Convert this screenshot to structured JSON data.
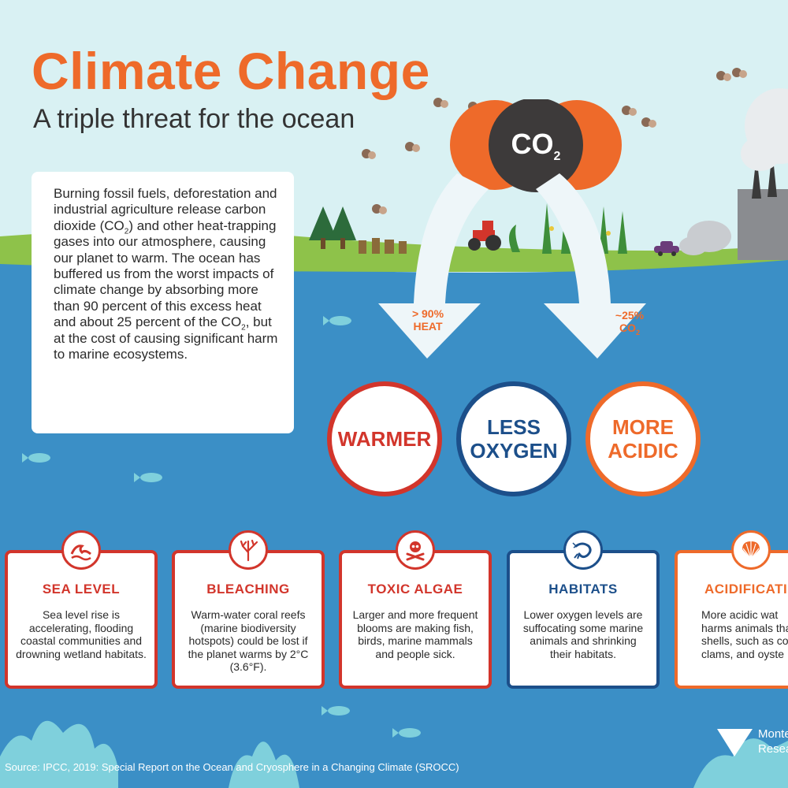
{
  "header": {
    "title": "Climate Change",
    "subtitle": "A triple threat for the ocean"
  },
  "intro": {
    "part1": "Burning fossil fuels, deforestation and industrial agriculture release carbon dioxide (CO",
    "sub1": "2",
    "part2": ") and other heat-trapping gases into our atmosphere, causing our planet to warm. The ocean has buffered us from the worst impacts of climate change by absorbing more than 90 percent of this excess heat and about 25 percent of the CO",
    "sub2": "2",
    "part3": ", but at the cost of causing significant harm to marine ecosystems."
  },
  "co2": {
    "label": "CO",
    "sub": "2"
  },
  "arrows": {
    "heat": {
      "line1": "> 90%",
      "line2": "HEAT"
    },
    "co2": {
      "line1": "~25%",
      "line2": "CO",
      "sub": "2"
    }
  },
  "threats": [
    {
      "line1": "WARMER",
      "line2": ""
    },
    {
      "line1": "LESS",
      "line2": "OXYGEN"
    },
    {
      "line1": "MORE",
      "line2": "ACIDIC"
    }
  ],
  "cards": [
    {
      "title": "SEA LEVEL",
      "desc": "Sea level rise is accelerating, flooding coastal communities and drowning wetland habitats.",
      "icon": "wave-icon"
    },
    {
      "title": "BLEACHING",
      "desc": "Warm-water coral reefs (marine biodiversity hotspots) could be lost if the planet warms by 2°C (3.6°F).",
      "icon": "coral-icon"
    },
    {
      "title": "TOXIC ALGAE",
      "desc": "Larger and more frequent blooms are making fish, birds, marine mammals and people sick.",
      "icon": "skull-crossbones-icon"
    },
    {
      "title": "HABITATS",
      "desc": "Lower oxygen levels are suffocating some marine animals and shrinking their habitats.",
      "icon": "shrimp-icon"
    },
    {
      "title": "ACIDIFICATIO",
      "desc": "More acidic wat harms animals that shells, such as cor clams, and oyste",
      "icon": "shell-icon"
    }
  ],
  "colors": {
    "sky": "#d9f1f3",
    "ocean": "#3b8fc6",
    "land": "#8ec24a",
    "orange": "#ee6a2a",
    "red": "#d2352b",
    "navy": "#1c4f8a"
  },
  "source": "Source: IPCC, 2019: Special Report on the Ocean and Cryosphere in a Changing Climate (SROCC)",
  "logo": {
    "line1": "Monte",
    "line2": "Resea"
  }
}
